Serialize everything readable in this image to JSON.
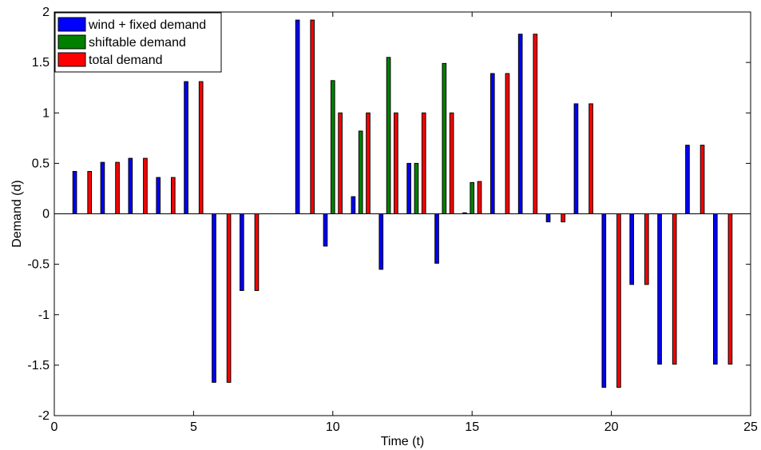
{
  "chart_data": {
    "type": "bar",
    "xlabel": "Time (t)",
    "ylabel": "Demand (d)",
    "xlim": [
      0,
      25
    ],
    "ylim": [
      -2,
      2
    ],
    "xticks": [
      "0",
      "5",
      "10",
      "15",
      "20",
      "25"
    ],
    "yticks": [
      "-2",
      "-1.5",
      "-1",
      "-0.5",
      "0",
      "0.5",
      "1",
      "1.5",
      "2"
    ],
    "legend_position": "top-left",
    "grid": false,
    "x": [
      1,
      2,
      3,
      4,
      5,
      6,
      7,
      8,
      9,
      10,
      11,
      12,
      13,
      14,
      15,
      16,
      17,
      18,
      19,
      20,
      21,
      22,
      23,
      24
    ],
    "series": [
      {
        "name": "wind + fixed demand",
        "color": "#0000ff",
        "values": [
          0.42,
          0.51,
          0.55,
          0.36,
          1.31,
          -1.67,
          -0.76,
          0,
          1.92,
          -0.32,
          0.17,
          -0.55,
          0.5,
          -0.49,
          0.01,
          1.39,
          1.78,
          -0.08,
          1.09,
          -1.72,
          -0.7,
          -1.49,
          0.68,
          -1.49
        ]
      },
      {
        "name": "shiftable demand",
        "color": "#008000",
        "values": [
          0,
          0,
          0,
          0,
          0,
          0,
          0,
          0,
          0,
          1.32,
          0.82,
          1.55,
          0.5,
          1.49,
          0.31,
          0,
          0,
          0,
          0,
          0,
          0,
          0,
          0,
          0
        ]
      },
      {
        "name": "total demand",
        "color": "#ff0000",
        "values": [
          0.42,
          0.51,
          0.55,
          0.36,
          1.31,
          -1.67,
          -0.76,
          0,
          1.92,
          1.0,
          1.0,
          1.0,
          1.0,
          1.0,
          0.32,
          1.39,
          1.78,
          -0.08,
          1.09,
          -1.72,
          -0.7,
          -1.49,
          0.68,
          -1.49
        ]
      }
    ]
  }
}
